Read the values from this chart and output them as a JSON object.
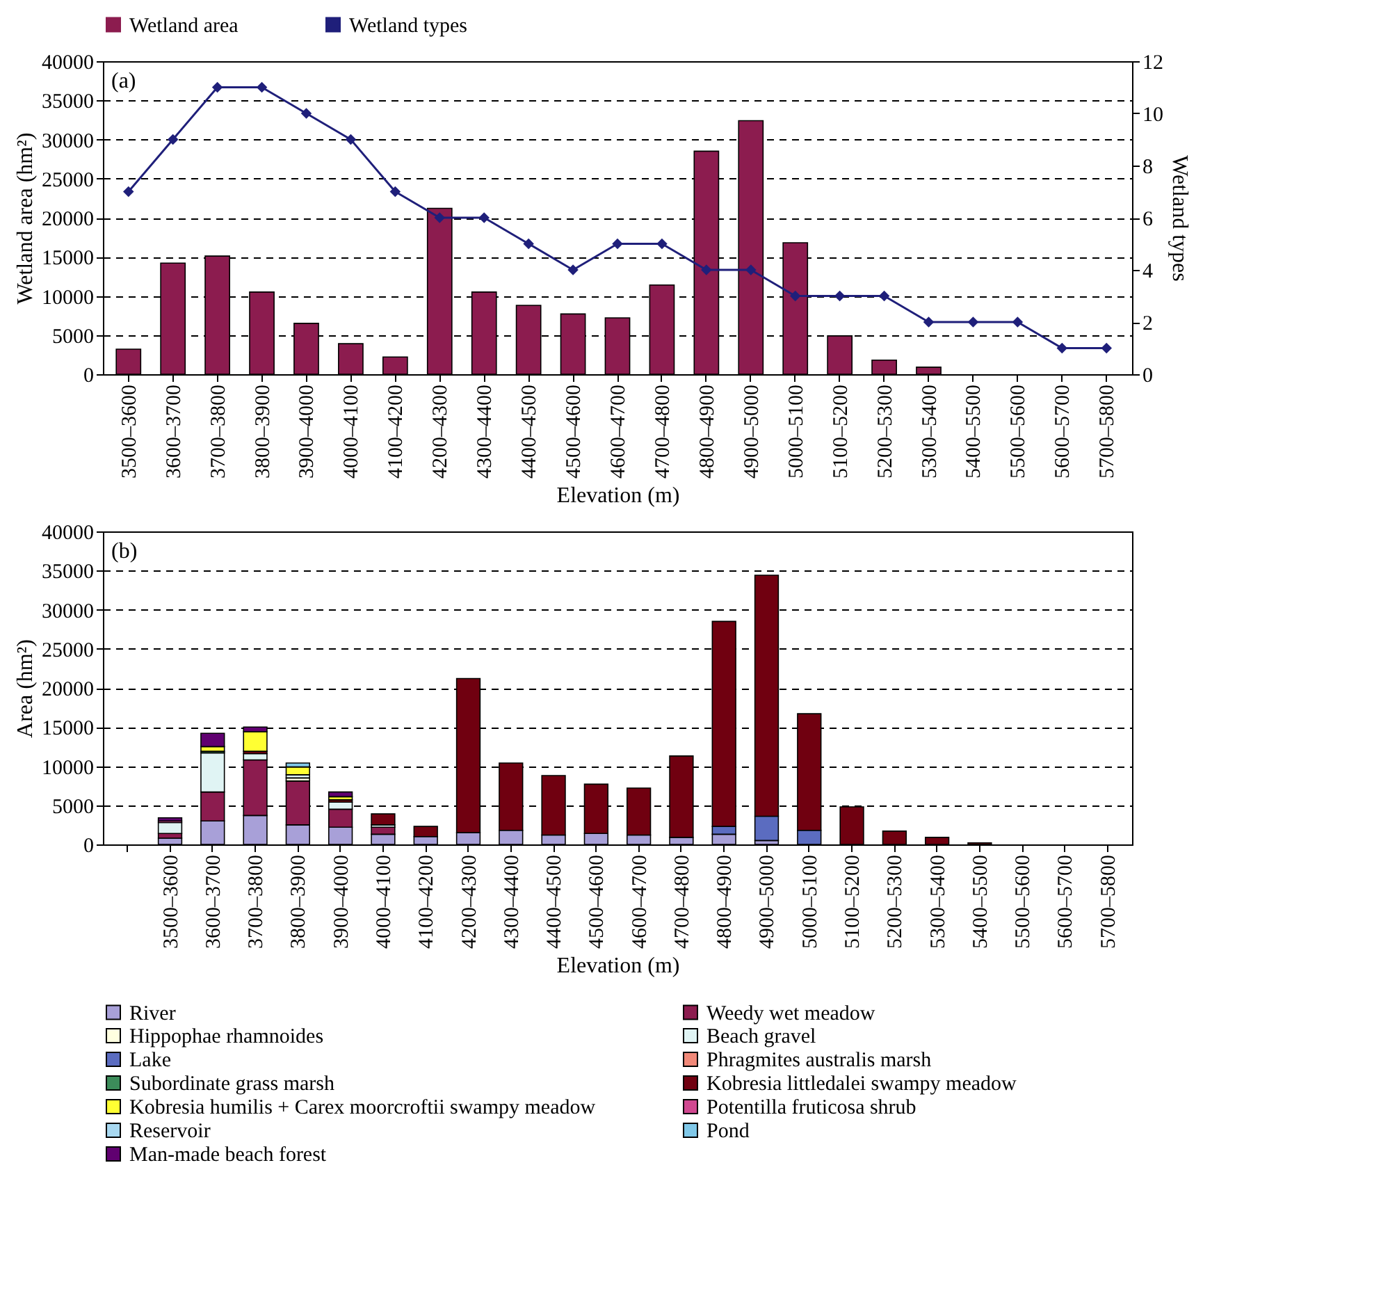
{
  "chart_data": [
    {
      "type": "bar",
      "categories": [
        "3500–3600",
        "3600–3700",
        "3700–3800",
        "3800–3900",
        "3900–4000",
        "4000–4100",
        "4100–4200",
        "4200–4300",
        "4300–4400",
        "4400–4500",
        "4500–4600",
        "4600–4700",
        "4700–4800",
        "4800–4900",
        "4900–5000",
        "5000–5100",
        "5100–5200",
        "5200–5300",
        "5300–5400",
        "5400–5500",
        "5500–5600",
        "5600–5700",
        "5700–5800"
      ],
      "series": [
        {
          "name": "Wetland area",
          "color": "#8c1c4f",
          "values": [
            3200,
            14200,
            15100,
            10500,
            6500,
            3900,
            2200,
            21200,
            10500,
            8800,
            7700,
            7200,
            11400,
            28500,
            32400,
            16800,
            4900,
            1800,
            900,
            null,
            null,
            null,
            null
          ]
        },
        {
          "name": "Wetland types",
          "type": "line",
          "axis": "y2",
          "color": "#1f1f7a",
          "values": [
            7,
            9,
            11,
            11,
            10,
            9,
            7,
            6,
            6,
            5,
            4,
            5,
            5,
            4,
            4,
            3,
            3,
            3,
            2,
            2,
            2,
            1,
            1
          ]
        }
      ],
      "xlabel": "Elevation (m)",
      "ylabel": "Wetland area (hm²)",
      "y2label": "Wetland types",
      "ylim": [
        0,
        40000
      ],
      "yticks": [
        0,
        5000,
        10000,
        15000,
        20000,
        25000,
        30000,
        35000,
        40000
      ],
      "y2lim": [
        0,
        12
      ],
      "y2ticks": [
        0,
        2,
        4,
        6,
        8,
        10,
        12
      ],
      "grid": "y",
      "legend": "top",
      "marker": "diamond",
      "annotations": [
        "(a)"
      ]
    },
    {
      "type": "bar",
      "stacked": true,
      "categories": [
        null,
        "3500–3600",
        "3600–3700",
        "3700–3800",
        "3800–3900",
        "3900–4000",
        "4000–4100",
        "4100–4200",
        "4200–4300",
        "4300–4400",
        "4400–4500",
        "4500–4600",
        "4600–4700",
        "4700–4800",
        "4800–4900",
        "4900–5000",
        "5000–5100",
        "5100–5200",
        "5200–5300",
        "5300–5400",
        "5400–5500",
        "5500–5600",
        "5600–5700",
        "5700–5800"
      ],
      "series": [
        {
          "name": "River",
          "color": "#a8a0d8",
          "values": [
            null,
            800,
            3000,
            3700,
            2500,
            2200,
            1300,
            1000,
            1500,
            1800,
            1200,
            1400,
            1200,
            900,
            1300,
            500,
            null,
            null,
            null,
            null,
            null,
            null,
            null,
            null
          ]
        },
        {
          "name": "Weedy wet meadow",
          "color": "#8c1c4f",
          "values": [
            null,
            600,
            3700,
            7100,
            5600,
            2300,
            900,
            null,
            null,
            null,
            null,
            null,
            null,
            null,
            null,
            null,
            null,
            null,
            null,
            null,
            null,
            null,
            null,
            null
          ]
        },
        {
          "name": "Hippophae rhamnoides",
          "color": "#ffffe0",
          "values": [
            null,
            null,
            null,
            null,
            400,
            null,
            null,
            null,
            null,
            null,
            null,
            null,
            null,
            null,
            null,
            null,
            null,
            null,
            null,
            null,
            null,
            null,
            null,
            null
          ]
        },
        {
          "name": "Beach gravel",
          "color": "#e0f4f4",
          "values": [
            null,
            1400,
            5000,
            800,
            400,
            900,
            300,
            null,
            null,
            null,
            null,
            null,
            null,
            null,
            null,
            null,
            null,
            null,
            null,
            null,
            null,
            null,
            null,
            null
          ]
        },
        {
          "name": "Lake",
          "color": "#5b6cc0",
          "values": [
            null,
            null,
            null,
            null,
            null,
            null,
            null,
            null,
            null,
            null,
            null,
            null,
            null,
            null,
            1000,
            3100,
            1800,
            null,
            null,
            null,
            null,
            null,
            null,
            null
          ]
        },
        {
          "name": "Phragmites australis marsh",
          "color": "#f08878",
          "values": [
            null,
            null,
            null,
            null,
            null,
            null,
            null,
            null,
            null,
            null,
            null,
            null,
            null,
            null,
            null,
            null,
            null,
            null,
            null,
            null,
            null,
            null,
            null,
            null
          ]
        },
        {
          "name": "Subordinate grass marsh",
          "color": "#3c8c5a",
          "values": [
            null,
            null,
            200,
            null,
            null,
            null,
            null,
            null,
            null,
            null,
            null,
            null,
            null,
            null,
            null,
            null,
            null,
            null,
            null,
            null,
            null,
            null,
            null,
            null
          ]
        },
        {
          "name": "Kobresia littledalei swampy meadow",
          "color": "#700010",
          "values": [
            null,
            null,
            null,
            300,
            null,
            300,
            1400,
            1300,
            19700,
            8600,
            7600,
            6300,
            6000,
            10400,
            26200,
            30800,
            14900,
            4800,
            1700,
            900,
            200,
            null,
            null,
            null
          ]
        },
        {
          "name": "Kobresia humilis + Carex moorcroftii swampy meadow",
          "color": "#ffff33",
          "values": [
            null,
            null,
            600,
            2500,
            1000,
            400,
            null,
            null,
            null,
            null,
            null,
            null,
            null,
            null,
            null,
            null,
            null,
            null,
            null,
            null,
            null,
            null,
            null,
            null
          ]
        },
        {
          "name": "Potentilla fruticosa shrub",
          "color": "#d04890",
          "values": [
            null,
            200,
            null,
            null,
            null,
            null,
            null,
            null,
            null,
            null,
            null,
            null,
            null,
            null,
            null,
            null,
            null,
            null,
            null,
            null,
            null,
            null,
            null,
            null
          ]
        },
        {
          "name": "Reservoir",
          "color": "#a8d8f0",
          "values": [
            null,
            null,
            null,
            null,
            null,
            null,
            null,
            null,
            null,
            null,
            null,
            null,
            null,
            null,
            null,
            null,
            null,
            null,
            null,
            null,
            null,
            null,
            null,
            null
          ]
        },
        {
          "name": "Pond",
          "color": "#80c8e8",
          "values": [
            null,
            null,
            null,
            null,
            500,
            null,
            null,
            null,
            null,
            null,
            null,
            null,
            null,
            null,
            null,
            null,
            null,
            null,
            null,
            null,
            null,
            null,
            null,
            null
          ]
        },
        {
          "name": "Man-made beach forest",
          "color": "#600070",
          "values": [
            null,
            400,
            1700,
            600,
            null,
            600,
            null,
            null,
            null,
            null,
            null,
            null,
            null,
            null,
            null,
            null,
            null,
            null,
            null,
            null,
            null,
            null,
            null,
            null
          ]
        }
      ],
      "xlabel": "Elevation (m)",
      "ylabel": "Area (hm²)",
      "ylim": [
        0,
        40000
      ],
      "yticks": [
        0,
        5000,
        10000,
        15000,
        20000,
        25000,
        30000,
        35000,
        40000
      ],
      "grid": "y",
      "legend": "bottom",
      "annotations": [
        "(b)"
      ]
    }
  ]
}
